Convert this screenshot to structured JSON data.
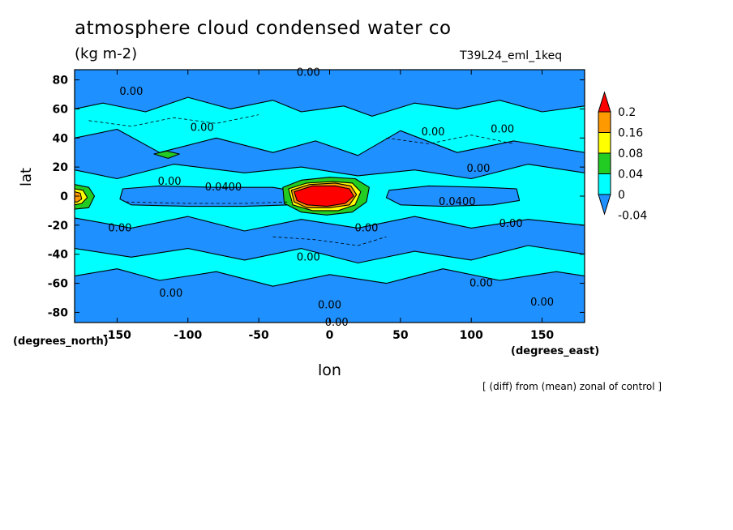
{
  "chart_data": {
    "type": "heatmap",
    "title": "atmosphere cloud condensed water co",
    "units": "(kg m-2)",
    "run_label": "T39L24_eml_1keq",
    "xlabel": "lon",
    "ylabel": "lat",
    "x_unit": "(degrees_east)",
    "y_unit": "(degrees_north)",
    "note": "[ (diff) from (mean) zonal of control ]",
    "xlim": [
      -180,
      180
    ],
    "ylim": [
      -87,
      87
    ],
    "x_ticks": [
      -150,
      -100,
      -50,
      0,
      50,
      100,
      150
    ],
    "y_ticks": [
      80,
      60,
      40,
      20,
      0,
      -20,
      -40,
      -60,
      -80
    ],
    "colorbar": {
      "levels": [
        -0.04,
        0,
        0.04,
        0.08,
        0.16,
        0.2
      ],
      "labels": [
        "-0.04",
        "0",
        "0.04",
        "0.08",
        "0.16",
        "0.2"
      ],
      "colors": [
        "#1e90ff",
        "#00ffff",
        "#22cc22",
        "#ffff00",
        "#ff9900",
        "#ff0000"
      ]
    },
    "contour_labels": [
      {
        "text": "0.00",
        "lon": -15,
        "lat": 85
      },
      {
        "text": "0.00",
        "lon": -140,
        "lat": 72
      },
      {
        "text": "0.00",
        "lon": -90,
        "lat": 47
      },
      {
        "text": "0.00",
        "lon": 73,
        "lat": 44
      },
      {
        "text": "0.00",
        "lon": 122,
        "lat": 46
      },
      {
        "text": "0.00",
        "lon": 105,
        "lat": 19
      },
      {
        "text": "0.00",
        "lon": -113,
        "lat": 10
      },
      {
        "text": "0.0400",
        "lon": -75,
        "lat": 6
      },
      {
        "text": "0.0400",
        "lon": 90,
        "lat": -4
      },
      {
        "text": "0.00",
        "lon": 128,
        "lat": -19
      },
      {
        "text": "0.00",
        "lon": -148,
        "lat": -22
      },
      {
        "text": "0.00",
        "lon": 26,
        "lat": -22
      },
      {
        "text": "0.00",
        "lon": -15,
        "lat": -42
      },
      {
        "text": "0.00",
        "lon": 107,
        "lat": -60
      },
      {
        "text": "0.00",
        "lon": -112,
        "lat": -67
      },
      {
        "text": "0.00",
        "lon": 150,
        "lat": -73
      },
      {
        "text": "0.00",
        "lon": 0,
        "lat": -75
      },
      {
        "text": "0.00",
        "lon": 5,
        "lat": -87
      }
    ]
  }
}
